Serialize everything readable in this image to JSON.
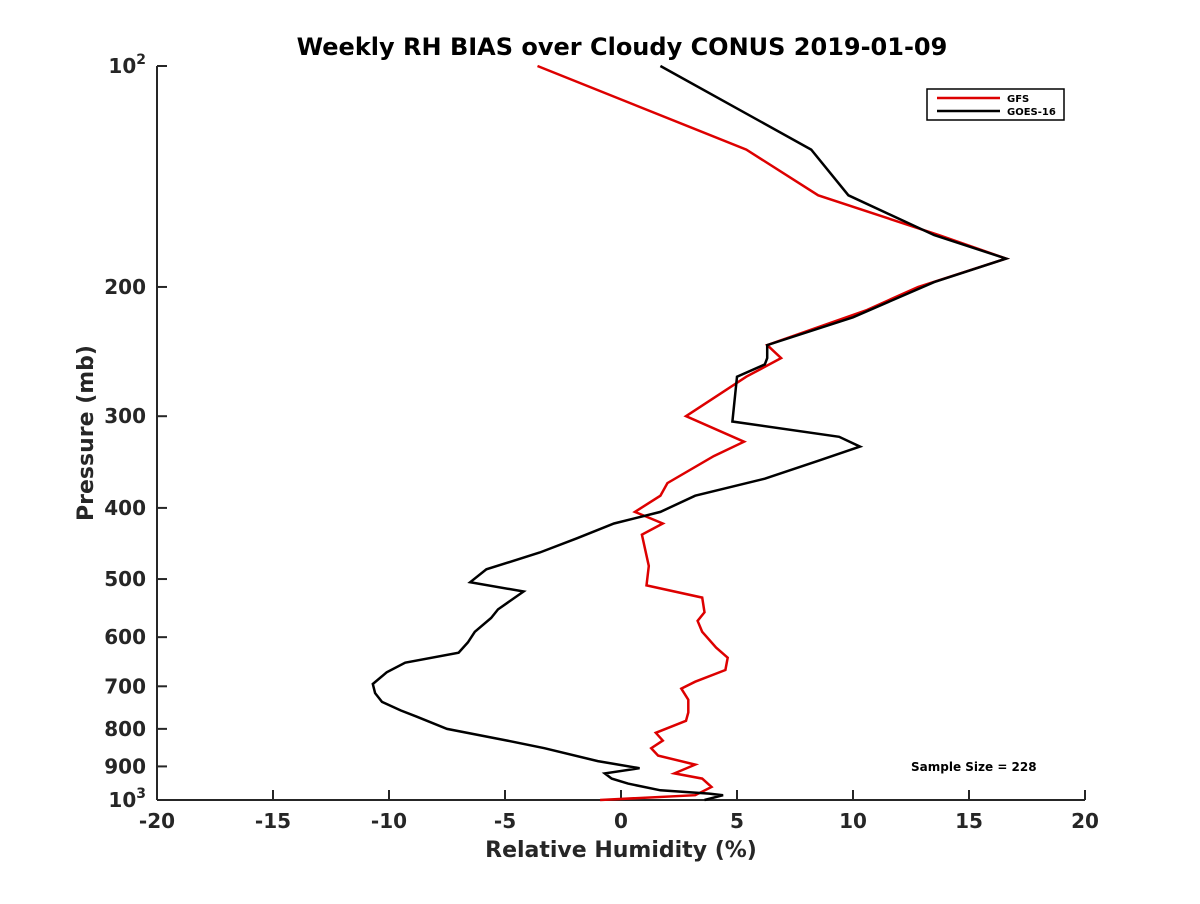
{
  "chart_data": {
    "type": "line",
    "title": "Weekly RH BIAS over Cloudy CONUS 2019-01-09",
    "xlabel": "Relative Humidity (%)",
    "ylabel": "Pressure (mb)",
    "xlim": [
      -20,
      20
    ],
    "ylim": [
      100,
      1000
    ],
    "yscale": "log",
    "y_reversed": true,
    "grid": false,
    "legend_position": "top-right",
    "x_ticks": [
      "-20",
      "-15",
      "-10",
      "-5",
      "0",
      "5",
      "10",
      "15",
      "20"
    ],
    "x_tick_values": [
      -20,
      -15,
      -10,
      -5,
      0,
      5,
      10,
      15,
      20
    ],
    "y_ticks": [
      {
        "value": 100,
        "base": "10",
        "exp": "2"
      },
      {
        "value": 200,
        "label": "200"
      },
      {
        "value": 300,
        "label": "300"
      },
      {
        "value": 400,
        "label": "400"
      },
      {
        "value": 500,
        "label": "500"
      },
      {
        "value": 600,
        "label": "600"
      },
      {
        "value": 700,
        "label": "700"
      },
      {
        "value": 800,
        "label": "800"
      },
      {
        "value": 900,
        "label": "900"
      },
      {
        "value": 1000,
        "base": "10",
        "exp": "3"
      }
    ],
    "annotation": "Sample Size = 228",
    "series": [
      {
        "name": "GFS",
        "color": "#dd0000",
        "x": [
          -3.6,
          5.4,
          8.5,
          13.7,
          16.6,
          12.8,
          10.6,
          6.3,
          6.9,
          5.4,
          2.8,
          5.3,
          4.0,
          2.0,
          1.7,
          0.6,
          1.8,
          0.9,
          1.2,
          1.1,
          3.5,
          3.6,
          3.3,
          3.5,
          4.1,
          4.6,
          4.5,
          3.2,
          2.6,
          2.9,
          2.9,
          2.8,
          1.5,
          1.8,
          1.3,
          1.6,
          3.2,
          2.3,
          3.5,
          3.9,
          3.2,
          -0.9
        ],
        "y": [
          100,
          130,
          150,
          170,
          183,
          200,
          215,
          240,
          250,
          265,
          300,
          325,
          340,
          370,
          385,
          405,
          420,
          435,
          480,
          510,
          530,
          555,
          570,
          590,
          620,
          640,
          665,
          690,
          705,
          730,
          760,
          780,
          810,
          830,
          850,
          870,
          895,
          920,
          935,
          960,
          985,
          1000
        ]
      },
      {
        "name": "GOES-16",
        "color": "#000000",
        "x": [
          1.7,
          8.2,
          9.8,
          13.5,
          16.6,
          13.5,
          10.0,
          6.3,
          6.3,
          6.2,
          5.0,
          4.8,
          9.4,
          10.3,
          8.5,
          6.2,
          3.2,
          1.7,
          -0.3,
          -1.9,
          -3.5,
          -5.8,
          -6.5,
          -4.2,
          -5.3,
          -5.6,
          -6.3,
          -6.6,
          -7.0,
          -9.3,
          -10.1,
          -10.7,
          -10.6,
          -10.3,
          -9.5,
          -8.8,
          -7.5,
          -4.9,
          -3.3,
          -1.0,
          0.8,
          -0.7,
          -0.4,
          0.3,
          1.7,
          3.8,
          4.4,
          3.6
        ],
        "y": [
          100,
          130,
          150,
          170,
          183,
          197,
          220,
          240,
          250,
          255,
          265,
          305,
          320,
          330,
          345,
          365,
          385,
          405,
          420,
          440,
          460,
          485,
          505,
          520,
          550,
          565,
          590,
          610,
          630,
          650,
          670,
          695,
          715,
          735,
          755,
          770,
          800,
          830,
          850,
          885,
          905,
          920,
          935,
          950,
          970,
          980,
          985,
          1000
        ]
      }
    ]
  }
}
